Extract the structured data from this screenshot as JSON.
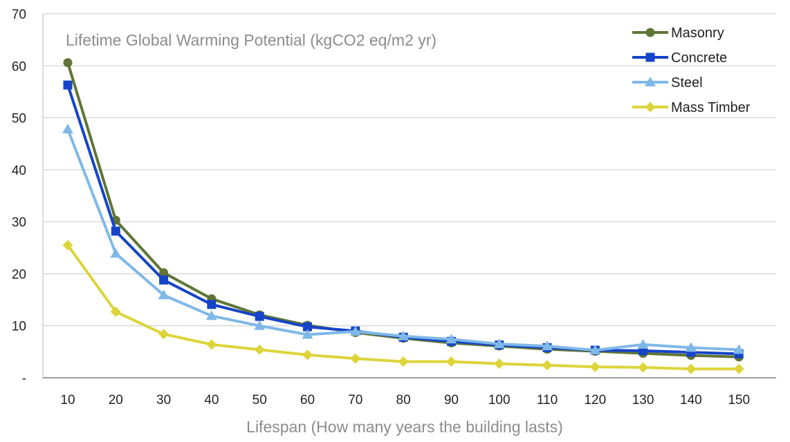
{
  "chart_data": {
    "type": "line",
    "title": "Lifetime Global Warming Potential (kgCO2 eq/m2 yr)",
    "xlabel": "Lifespan (How many years the building lasts)",
    "ylabel": "",
    "x": [
      "10",
      "20",
      "30",
      "40",
      "50",
      "60",
      "70",
      "80",
      "90",
      "100",
      "110",
      "120",
      "130",
      "140",
      "150"
    ],
    "ylim": [
      0,
      70
    ],
    "yticks": [
      0,
      10,
      20,
      30,
      40,
      50,
      60,
      70
    ],
    "ytick_labels": [
      "-",
      "10",
      "20",
      "30",
      "40",
      "50",
      "60",
      "70"
    ],
    "grid": "horizontal",
    "legend": "top-right",
    "series": [
      {
        "name": "Masonry",
        "color": "#5f7536",
        "marker": "circle",
        "values": [
          60.6,
          30.3,
          20.2,
          15.2,
          12.1,
          10.1,
          8.7,
          7.6,
          6.7,
          6.1,
          5.5,
          5.1,
          4.7,
          4.3,
          4.0
        ]
      },
      {
        "name": "Concrete",
        "color": "#1544c8",
        "marker": "square",
        "values": [
          56.3,
          28.2,
          18.8,
          14.1,
          11.8,
          9.8,
          9.0,
          7.8,
          7.0,
          6.3,
          5.8,
          5.3,
          5.2,
          4.9,
          4.6
        ]
      },
      {
        "name": "Steel",
        "color": "#7fb8e8",
        "marker": "triangle",
        "values": [
          47.8,
          23.9,
          15.9,
          11.9,
          10.0,
          8.3,
          8.9,
          8.0,
          7.4,
          6.5,
          6.1,
          5.3,
          6.4,
          5.8,
          5.4
        ]
      },
      {
        "name": "Mass Timber",
        "color": "#dcd43a",
        "marker": "diamond",
        "values": [
          25.5,
          12.7,
          8.4,
          6.4,
          5.4,
          4.4,
          3.7,
          3.1,
          3.1,
          2.7,
          2.4,
          2.1,
          2.0,
          1.7,
          1.7
        ]
      }
    ]
  }
}
